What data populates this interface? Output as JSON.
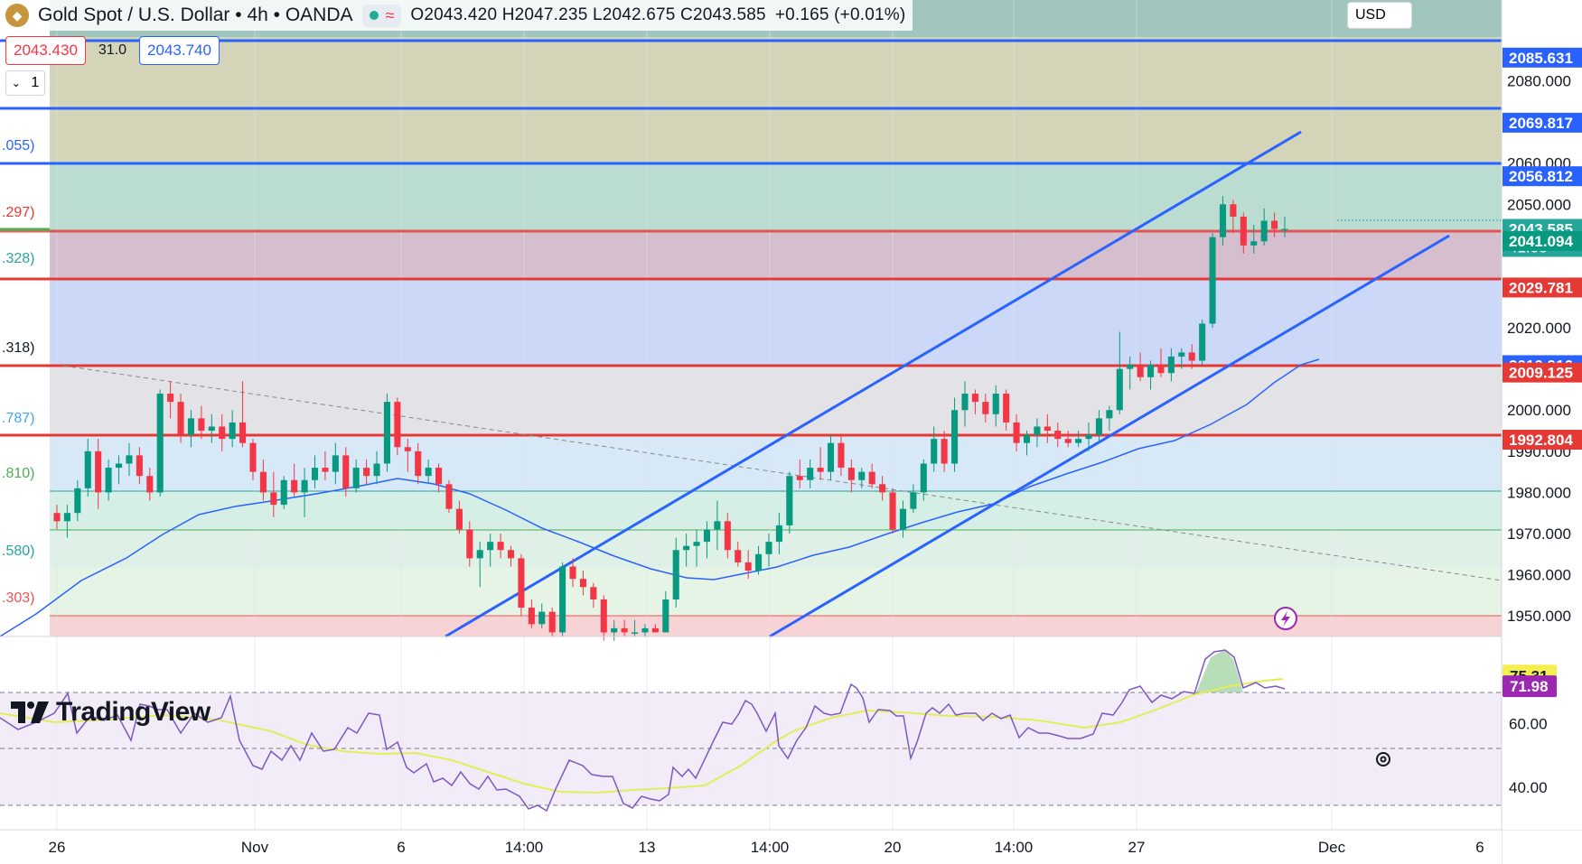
{
  "legend": {
    "symbol_title": "Gold Spot / U.S. Dollar • 4h • OANDA",
    "ohlc": "O2043.420  H2047.235  L2042.675  C2043.585",
    "change": "+0.165 (+0.01%)"
  },
  "trade": {
    "sell_price": "2043.430",
    "spread": "31.0",
    "buy_price": "2043.740",
    "quantity": "1"
  },
  "price_axis": {
    "currency": "USD",
    "ticks": [
      "2080.000",
      "2070.000",
      "2060.000",
      "2050.000",
      "2040.000",
      "2030.000",
      "2020.000",
      "2010.000",
      "2000.000",
      "1990.000",
      "1980.000",
      "1970.000",
      "1960.000",
      "1950.000"
    ],
    "badges": [
      {
        "label": "2085.631",
        "color": "#2962ff"
      },
      {
        "label": "2069.817",
        "color": "#2962ff"
      },
      {
        "label": "2056.812",
        "color": "#2962ff"
      },
      {
        "label": "2043.585",
        "color": "#26a69a",
        "countdown": "41:08"
      },
      {
        "label": "2041.094",
        "color": "#089981"
      },
      {
        "label": "2029.781",
        "color": "#e53935"
      },
      {
        "label": "2010.916",
        "color": "#2962ff"
      },
      {
        "label": "2009.125",
        "color": "#e53935"
      },
      {
        "label": "1992.804",
        "color": "#e53935"
      }
    ],
    "fib_left_labels": [
      ".055)",
      ".297)",
      ".328)",
      ".318)",
      ".787)",
      ".810)",
      ".580)",
      ".303)"
    ]
  },
  "rsi_axis": {
    "ticks": [
      "60.00",
      "40.00"
    ],
    "badges": [
      {
        "label": "75.31",
        "color": "#f5ee4f",
        "text": "#131722"
      },
      {
        "label": "71.98",
        "color": "#9c27b0",
        "text": "#ffffff"
      }
    ]
  },
  "time_axis": {
    "labels": [
      "26",
      "Nov",
      "6",
      "14:00",
      "13",
      "14:00",
      "20",
      "14:00",
      "27",
      "Dec",
      "6"
    ]
  },
  "branding": {
    "logo_text": "TradingView"
  },
  "colors": {
    "up": "#089981",
    "down": "#f23645",
    "channel": "#2962ff",
    "rsi": "#7e57c2",
    "rsi_ma": "#e3ed57",
    "ma": "#2962ff"
  },
  "chart_data": {
    "type": "candlestick",
    "instrument": "Gold Spot / U.S. Dollar",
    "timeframe": "4h",
    "ylim": [
      1945,
      2088
    ],
    "current_close": 2043.585,
    "horizontal_levels": [
      2085.631,
      2069.817,
      2056.812,
      2041.094,
      2029.781,
      2010.916,
      2009.125,
      1992.804
    ],
    "rsi": {
      "last": 71.98,
      "ma_last": 75.31,
      "ylim": [
        27,
        87
      ]
    },
    "candles": [
      [
        1975,
        1977,
        1971,
        1973
      ],
      [
        1973,
        1977,
        1969,
        1975
      ],
      [
        1975,
        1983,
        1973,
        1981
      ],
      [
        1981,
        1993,
        1979,
        1990
      ],
      [
        1990,
        1993,
        1976,
        1980
      ],
      [
        1980,
        1988,
        1978,
        1986
      ],
      [
        1986,
        1989,
        1982,
        1987
      ],
      [
        1987,
        1992,
        1984,
        1989
      ],
      [
        1989,
        1991,
        1982,
        1984
      ],
      [
        1984,
        1986,
        1978,
        1980
      ],
      [
        1980,
        2005,
        1979,
        2004
      ],
      [
        2004,
        2007,
        1998,
        2002
      ],
      [
        2002,
        2004,
        1992,
        1994
      ],
      [
        1994,
        2000,
        1991,
        1998
      ],
      [
        1998,
        2001,
        1993,
        1995
      ],
      [
        1995,
        1999,
        1992,
        1996
      ],
      [
        1996,
        1999,
        1990,
        1993
      ],
      [
        1993,
        2000,
        1991,
        1997
      ],
      [
        1997,
        2007,
        1991,
        1992
      ],
      [
        1992,
        1993,
        1983,
        1985
      ],
      [
        1985,
        1988,
        1978,
        1980
      ],
      [
        1980,
        1985,
        1974,
        1977
      ],
      [
        1977,
        1984,
        1976,
        1983
      ],
      [
        1983,
        1987,
        1979,
        1980
      ],
      [
        1980,
        1986,
        1974,
        1983
      ],
      [
        1983,
        1989,
        1981,
        1986
      ],
      [
        1986,
        1990,
        1983,
        1985
      ],
      [
        1985,
        1992,
        1982,
        1989
      ],
      [
        1989,
        1991,
        1979,
        1981
      ],
      [
        1981,
        1988,
        1980,
        1986
      ],
      [
        1986,
        1988,
        1982,
        1984
      ],
      [
        1984,
        1990,
        1982,
        1987
      ],
      [
        1987,
        2004,
        1985,
        2002
      ],
      [
        2002,
        2003,
        1989,
        1991
      ],
      [
        1991,
        1993,
        1985,
        1990
      ],
      [
        1990,
        1992,
        1982,
        1984
      ],
      [
        1984,
        1988,
        1982,
        1986
      ],
      [
        1986,
        1987,
        1980,
        1982
      ],
      [
        1982,
        1983,
        1975,
        1976
      ],
      [
        1976,
        1978,
        1970,
        1971
      ],
      [
        1971,
        1973,
        1962,
        1964
      ],
      [
        1964,
        1968,
        1957,
        1966
      ],
      [
        1966,
        1970,
        1962,
        1968
      ],
      [
        1968,
        1970,
        1964,
        1966
      ],
      [
        1966,
        1967,
        1962,
        1964
      ],
      [
        1964,
        1965,
        1950,
        1952
      ],
      [
        1952,
        1954,
        1947,
        1948
      ],
      [
        1948,
        1953,
        1947,
        1951
      ],
      [
        1951,
        1952,
        1945,
        1946
      ],
      [
        1946,
        1963,
        1945,
        1962
      ],
      [
        1962,
        1964,
        1957,
        1959
      ],
      [
        1959,
        1961,
        1955,
        1957
      ],
      [
        1957,
        1958,
        1952,
        1954
      ],
      [
        1954,
        1955,
        1944,
        1946
      ],
      [
        1946,
        1949,
        1944,
        1947
      ],
      [
        1947,
        1949,
        1945,
        1946
      ],
      [
        1946,
        1949,
        1945,
        1946
      ],
      [
        1946,
        1948,
        1945,
        1947
      ],
      [
        1947,
        1948,
        1946,
        1946
      ],
      [
        1946,
        1956,
        1946,
        1954
      ],
      [
        1954,
        1969,
        1952,
        1966
      ],
      [
        1966,
        1970,
        1962,
        1967
      ],
      [
        1967,
        1971,
        1962,
        1968
      ],
      [
        1968,
        1973,
        1964,
        1971
      ],
      [
        1971,
        1978,
        1966,
        1973
      ],
      [
        1973,
        1975,
        1964,
        1966
      ],
      [
        1966,
        1968,
        1962,
        1963
      ],
      [
        1963,
        1966,
        1959,
        1961
      ],
      [
        1961,
        1967,
        1960,
        1965
      ],
      [
        1965,
        1970,
        1962,
        1968
      ],
      [
        1968,
        1975,
        1965,
        1972
      ],
      [
        1972,
        1985,
        1970,
        1984
      ],
      [
        1984,
        1988,
        1981,
        1983
      ],
      [
        1983,
        1988,
        1981,
        1986
      ],
      [
        1986,
        1991,
        1983,
        1985
      ],
      [
        1985,
        1994,
        1983,
        1992
      ],
      [
        1992,
        1994,
        1984,
        1986
      ],
      [
        1986,
        1988,
        1980,
        1983
      ],
      [
        1983,
        1986,
        1981,
        1985
      ],
      [
        1985,
        1987,
        1981,
        1982
      ],
      [
        1982,
        1984,
        1978,
        1980
      ],
      [
        1980,
        1981,
        1970,
        1971
      ],
      [
        1971,
        1978,
        1969,
        1976
      ],
      [
        1976,
        1982,
        1975,
        1980
      ],
      [
        1980,
        1988,
        1978,
        1987
      ],
      [
        1987,
        1996,
        1985,
        1993
      ],
      [
        1993,
        1995,
        1985,
        1987
      ],
      [
        1987,
        2003,
        1985,
        2000
      ],
      [
        2000,
        2007,
        1996,
        2004
      ],
      [
        2004,
        2005,
        1999,
        2002
      ],
      [
        2002,
        2004,
        1997,
        1999
      ],
      [
        1999,
        2006,
        1996,
        2004
      ],
      [
        2004,
        2005,
        1995,
        1997
      ],
      [
        1997,
        1999,
        1990,
        1992
      ],
      [
        1992,
        1995,
        1989,
        1994
      ],
      [
        1994,
        1998,
        1991,
        1996
      ],
      [
        1996,
        1999,
        1992,
        1995
      ],
      [
        1995,
        1997,
        1991,
        1993
      ],
      [
        1993,
        1995,
        1991,
        1992
      ],
      [
        1992,
        1995,
        1991,
        1993
      ],
      [
        1993,
        1997,
        1990,
        1994
      ],
      [
        1994,
        2000,
        1992,
        1998
      ],
      [
        1998,
        2001,
        1995,
        2000
      ],
      [
        2000,
        2019,
        1999,
        2010
      ],
      [
        2010,
        2013,
        2005,
        2011
      ],
      [
        2011,
        2014,
        2007,
        2008
      ],
      [
        2008,
        2012,
        2005,
        2011
      ],
      [
        2011,
        2015,
        2008,
        2009
      ],
      [
        2009,
        2015,
        2007,
        2013
      ],
      [
        2013,
        2015,
        2010,
        2014
      ],
      [
        2014,
        2016,
        2010,
        2012
      ],
      [
        2012,
        2022,
        2011,
        2021
      ],
      [
        2021,
        2043,
        2020,
        2042
      ],
      [
        2042,
        2052,
        2040,
        2050
      ],
      [
        2050,
        2051,
        2043,
        2047
      ],
      [
        2047,
        2048,
        2038,
        2040
      ],
      [
        2040,
        2045,
        2038,
        2041
      ],
      [
        2041,
        2049,
        2040,
        2046
      ],
      [
        2046,
        2048,
        2042,
        2044
      ],
      [
        2044,
        2047,
        2042,
        2044
      ]
    ]
  }
}
